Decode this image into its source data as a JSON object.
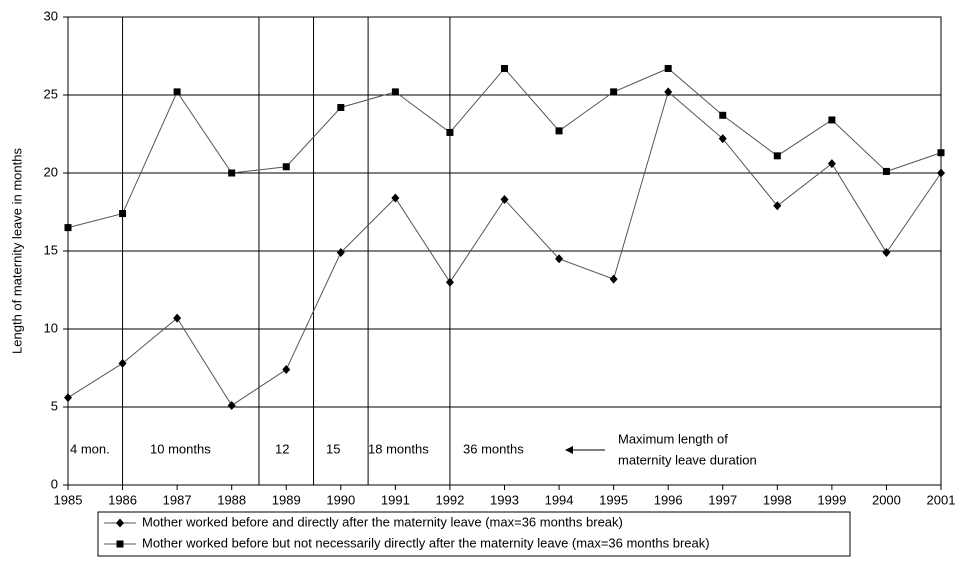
{
  "chart_data": {
    "type": "line",
    "y_label": "Length of maternity leave in months",
    "x": [
      1985,
      1986,
      1987,
      1988,
      1989,
      1990,
      1991,
      1992,
      1993,
      1994,
      1995,
      1996,
      1997,
      1998,
      1999,
      2000,
      2001
    ],
    "xlim": [
      1985,
      2001
    ],
    "xticks": [
      1985,
      1986,
      1987,
      1988,
      1989,
      1990,
      1991,
      1992,
      1993,
      1994,
      1995,
      1996,
      1997,
      1998,
      1999,
      2000,
      2001
    ],
    "ylim": [
      0,
      30
    ],
    "yticks": [
      0,
      5,
      10,
      15,
      20,
      25,
      30
    ],
    "grid": true,
    "series": [
      {
        "name": "Mother worked before and directly after the maternity leave (max=36 months break)",
        "color": "#000000",
        "marker": "diamond",
        "values": [
          5.6,
          7.8,
          10.7,
          5.1,
          7.4,
          14.9,
          18.4,
          13.0,
          18.3,
          14.5,
          13.2,
          25.2,
          22.2,
          17.9,
          20.6,
          14.9,
          20.0
        ]
      },
      {
        "name": "Mother worked before but not necessarily directly after the maternity leave (max=36 months break)",
        "color": "#000000",
        "marker": "square",
        "values": [
          16.5,
          17.4,
          25.2,
          20.0,
          20.4,
          24.2,
          25.2,
          22.6,
          26.7,
          22.7,
          25.2,
          26.7,
          23.7,
          21.1,
          23.4,
          20.1,
          21.3
        ]
      }
    ],
    "vertical_lines": [
      1986,
      1988.5,
      1989.5,
      1990.5,
      1992
    ],
    "annotations": [
      "4 mon.",
      "10 months",
      "12",
      "15",
      "18 months",
      "36 months"
    ],
    "note": [
      "Maximum length of",
      "maternity leave duration"
    ],
    "legend": "bottom"
  }
}
